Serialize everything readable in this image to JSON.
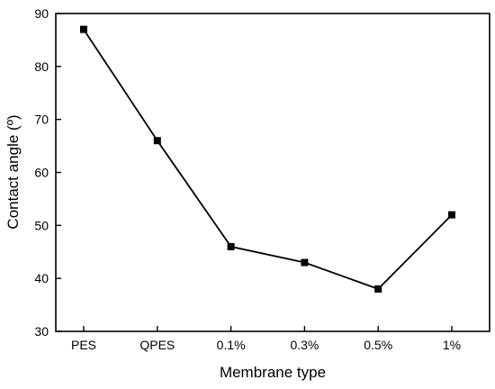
{
  "chart_data": {
    "type": "line",
    "categories": [
      "PES",
      "QPES",
      "0.1%",
      "0.3%",
      "0.5%",
      "1%"
    ],
    "series": [
      {
        "values": [
          87,
          66,
          46,
          43,
          38,
          52
        ]
      }
    ],
    "xlabel": "Membrane type",
    "ylabel": "Contact angle (º)",
    "ylim": [
      30,
      90
    ],
    "yticks": [
      30,
      40,
      50,
      60,
      70,
      80,
      90
    ],
    "grid": false,
    "marker": "square",
    "color": "#000000"
  }
}
